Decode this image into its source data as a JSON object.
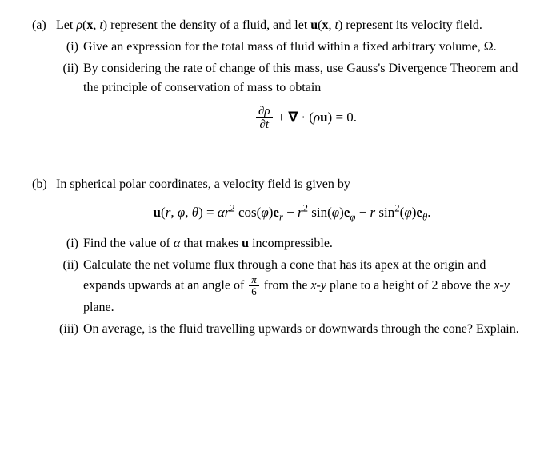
{
  "a": {
    "label": "(a)",
    "intro_html": "Let <span class='ital'>ρ</span>(<span class='bold'>x</span>, <span class='ital'>t</span>) represent the density of a fluid, and let <span class='bold'>u</span>(<span class='bold'>x</span>, <span class='ital'>t</span>) represent its velocity field.",
    "i": {
      "label": "(i)",
      "text_html": "Give an expression for the total mass of fluid within a fixed arbitrary volume, Ω."
    },
    "ii": {
      "label": "(ii)",
      "text_html": "By considering the rate of change of this mass, use Gauss's Divergence Theorem and the principle of conservation of mass to obtain",
      "equation_html": "<span class='frac'><span class='num'><span class='ital'>∂ρ</span></span><span class='den'><span class='ital'>∂t</span></span></span> + <span class='bold'>∇</span> · (<span class='ital'>ρ</span><span class='bold'>u</span>) = 0."
    }
  },
  "b": {
    "label": "(b)",
    "intro_html": "In spherical polar coordinates, a velocity field is given by",
    "equation_html": "<span class='bold'>u</span>(<span class='ital'>r</span>, <span class='ital'>φ</span>, <span class='ital'>θ</span>) = <span class='ital'>αr</span><sup>2</sup> cos(<span class='ital'>φ</span>)<span class='bold'>e</span><sub><span class='ital'>r</span></sub> − <span class='ital'>r</span><sup>2</sup> sin(<span class='ital'>φ</span>)<span class='bold'>e</span><sub><span class='ital'>φ</span></sub> − <span class='ital'>r</span> sin<sup>2</sup>(<span class='ital'>φ</span>)<span class='bold'>e</span><sub><span class='ital'>θ</span></sub>.",
    "i": {
      "label": "(i)",
      "text_html": "Find the value of <span class='ital'>α</span> that makes <span class='bold'>u</span> incompressible."
    },
    "ii": {
      "label": "(ii)",
      "text_html": "Calculate the net volume flux through a cone that has its apex at the origin and expands upwards at an angle of <span class='frac' style='font-size:13px'><span class='num'><span class='ital'>π</span></span><span class='den'>6</span></span> from the <span class='ital'>x</span>-<span class='ital'>y</span> plane to a height of 2 above the <span class='ital'>x</span>-<span class='ital'>y</span> plane."
    },
    "iii": {
      "label": "(iii)",
      "text_html": "On average, is the fluid travelling upwards or downwards through the cone? Explain."
    }
  }
}
